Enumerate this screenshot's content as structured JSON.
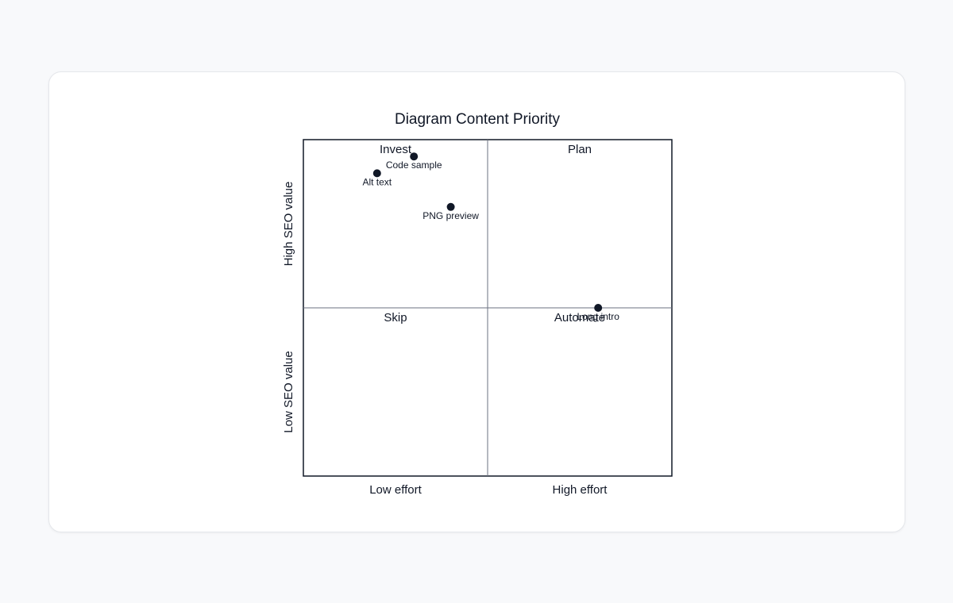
{
  "chart_data": {
    "type": "scatter",
    "title": "Diagram Content Priority",
    "x_axis": {
      "low_label": "Low effort",
      "high_label": "High effort",
      "range": [
        0,
        1
      ]
    },
    "y_axis": {
      "low_label": "Low SEO value",
      "high_label": "High SEO value",
      "range": [
        0,
        1
      ]
    },
    "quadrants": {
      "top_left": "Invest",
      "top_right": "Plan",
      "bottom_left": "Skip",
      "bottom_right": "Automate"
    },
    "points": [
      {
        "label": "Code sample",
        "x": 0.3,
        "y": 0.95
      },
      {
        "label": "Alt text",
        "x": 0.2,
        "y": 0.9
      },
      {
        "label": "PNG preview",
        "x": 0.4,
        "y": 0.8
      },
      {
        "label": "Long intro",
        "x": 0.8,
        "y": 0.5
      }
    ],
    "colors": {
      "point": "#111827",
      "frame": "#111827",
      "divider": "#6b7280"
    }
  }
}
